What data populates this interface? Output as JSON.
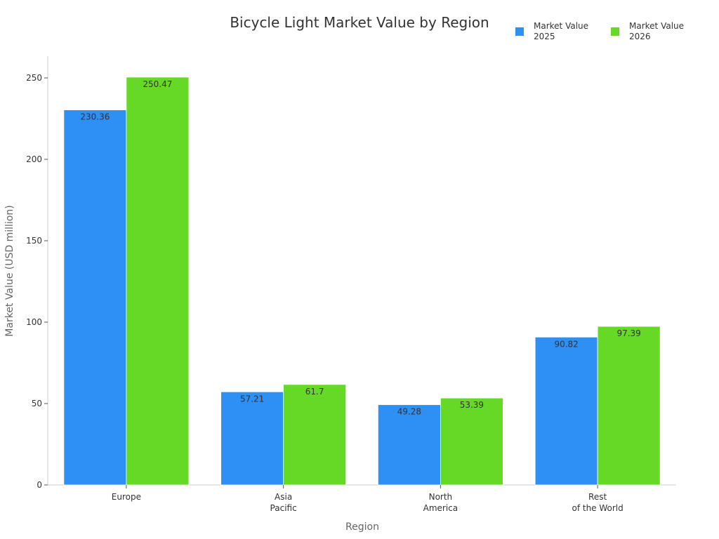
{
  "chart_data": {
    "type": "bar",
    "title": "Bicycle Light Market Value by Region",
    "xlabel": "Region",
    "ylabel": "Market Value (USD million)",
    "categories": [
      "Europe",
      "Asia Pacific",
      "North America",
      "Rest of the World"
    ],
    "category_lines": [
      [
        "Europe"
      ],
      [
        "Asia",
        "Pacific"
      ],
      [
        "North",
        "America"
      ],
      [
        "Rest",
        "of the World"
      ]
    ],
    "series": [
      {
        "name": "Market Value 2025",
        "legend_lines": [
          "Market Value",
          "2025"
        ],
        "color": "#2e8ff5",
        "values": [
          230.36,
          57.21,
          49.28,
          90.82
        ]
      },
      {
        "name": "Market Value 2026",
        "legend_lines": [
          "Market Value",
          "2026"
        ],
        "color": "#66d927",
        "values": [
          250.47,
          61.7,
          53.39,
          97.39
        ]
      }
    ],
    "yticks": [
      0,
      50,
      100,
      150,
      200,
      250
    ],
    "ylim": [
      0,
      263
    ],
    "grid": false,
    "legend_position": "top-right"
  }
}
